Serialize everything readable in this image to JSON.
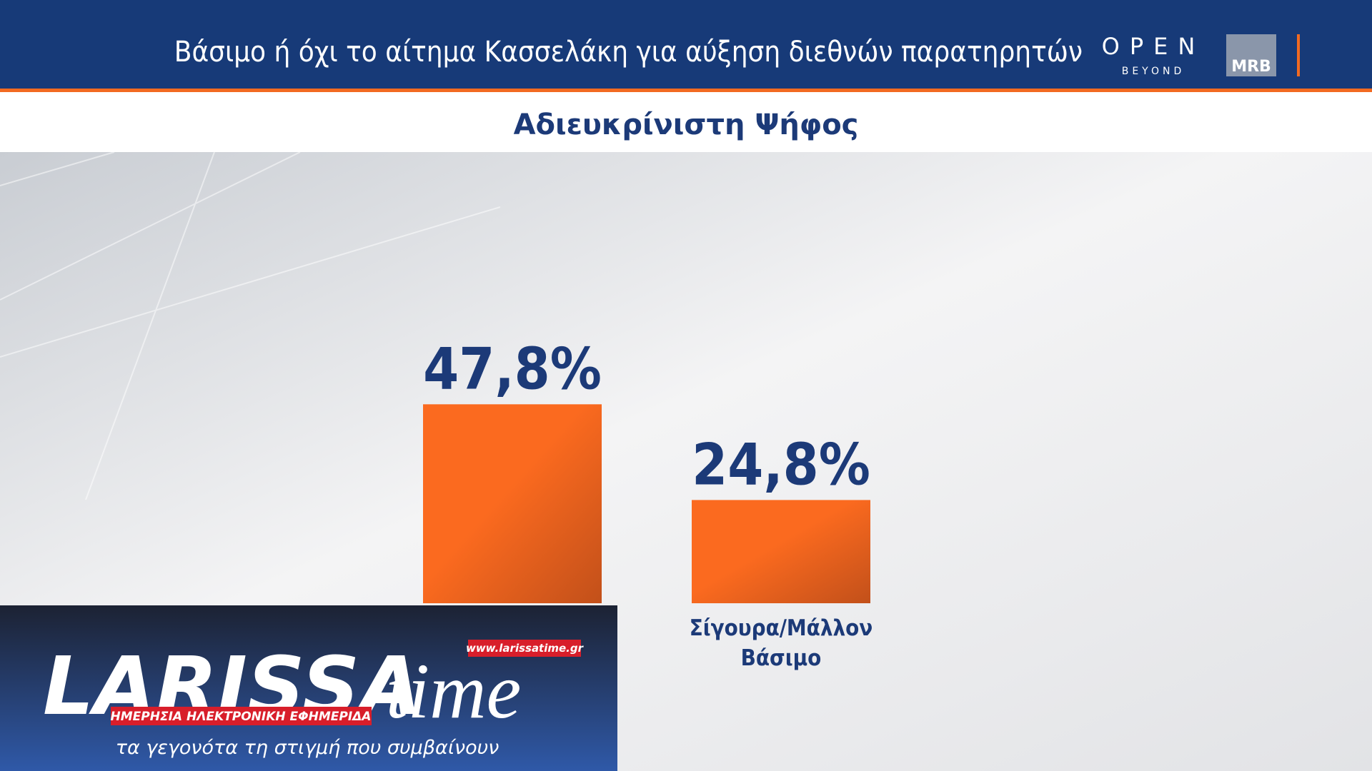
{
  "chart_data": {
    "type": "bar",
    "title": "Βάσιμο ή όχι το αίτημα Κασσελάκη για αύξηση διεθνών παρατηρητών",
    "subtitle": "Αδιευκρίνιστη Ψήφος",
    "categories": [
      null,
      "Σίγουρα/Μάλλον Βάσιμο"
    ],
    "values": [
      47.8,
      24.8
    ],
    "value_labels": [
      "47,8%",
      "24,8%"
    ],
    "color": "#fb6a1f"
  },
  "branding": {
    "open": "OPEN",
    "beyond": "BEYOND",
    "mrb": "MRB"
  },
  "overlay": {
    "logo_main": "LARISSA",
    "logo_time": "time",
    "url": "www.larissatime.gr",
    "tagline": "ΗΜΕΡΗΣΙΑ ΗΛΕΚΤΡΟΝΙΚΗ ΕΦΗΜΕΡΙΔΑ",
    "slogan": "τα γεγονότα τη στιγμή που συμβαίνουν"
  }
}
